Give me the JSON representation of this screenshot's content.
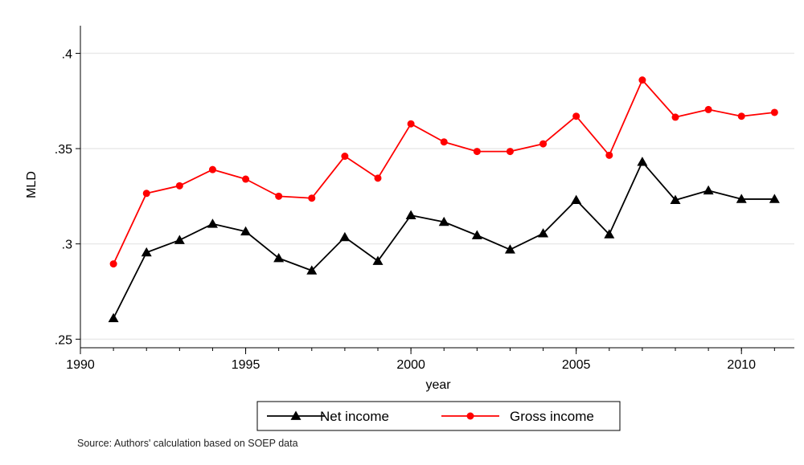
{
  "chart_data": {
    "type": "line",
    "title": "",
    "xlabel": "year",
    "ylabel": "MLD",
    "xlim": [
      1990,
      2011
    ],
    "ylim": [
      0.25,
      0.4
    ],
    "x_ticks": [
      1990,
      1995,
      2000,
      2005,
      2010
    ],
    "y_ticks": [
      0.25,
      0.3,
      0.35,
      0.4
    ],
    "y_tick_labels": [
      ".25",
      ".3",
      ".35",
      ".4"
    ],
    "grid": true,
    "legend_position": "bottom",
    "x": [
      1991,
      1992,
      1993,
      1994,
      1995,
      1996,
      1997,
      1998,
      1999,
      2000,
      2001,
      2002,
      2003,
      2004,
      2005,
      2006,
      2007,
      2008,
      2009,
      2010,
      2011
    ],
    "series": [
      {
        "name": "Net income",
        "color": "#000000",
        "marker": "triangle",
        "values": [
          0.261,
          0.2955,
          0.302,
          0.3105,
          0.3065,
          0.2925,
          0.286,
          0.3035,
          0.291,
          0.315,
          0.3115,
          0.3045,
          0.297,
          0.3055,
          0.323,
          0.305,
          0.343,
          0.323,
          0.328,
          0.3235,
          0.3235
        ]
      },
      {
        "name": "Gross income",
        "color": "#ff0000",
        "marker": "circle",
        "values": [
          0.2895,
          0.3265,
          0.3305,
          0.339,
          0.334,
          0.325,
          0.324,
          0.346,
          0.3345,
          0.363,
          0.3535,
          0.3485,
          0.3485,
          0.3525,
          0.367,
          0.3465,
          0.386,
          0.3665,
          0.3705,
          0.367,
          0.369
        ]
      }
    ]
  },
  "note": "Source: Authors' calculation based on SOEP data"
}
